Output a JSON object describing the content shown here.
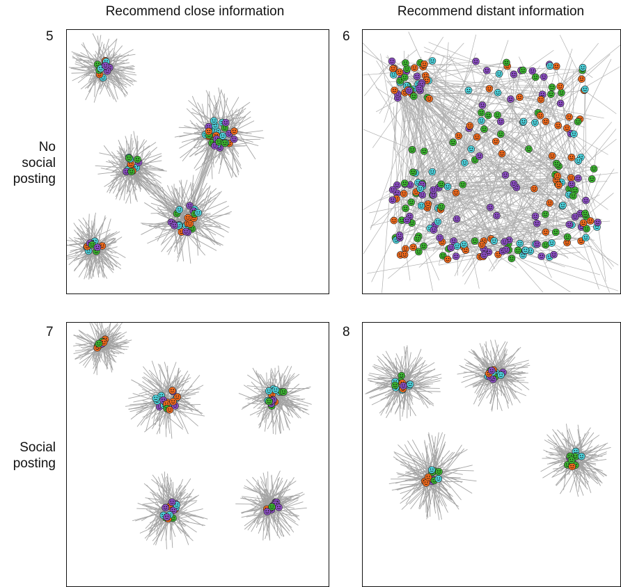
{
  "column_titles": [
    "Recommend close information",
    "Recommend distant information"
  ],
  "row_labels": [
    {
      "lines": [
        "No",
        "social",
        "posting"
      ]
    },
    {
      "lines": [
        "Social",
        "posting"
      ]
    }
  ],
  "panels": [
    {
      "number": "5",
      "layout": "clusters",
      "cluster_count": 5,
      "intercluster_links": true
    },
    {
      "number": "6",
      "layout": "dispersed",
      "cluster_count": 0,
      "intercluster_links": true
    },
    {
      "number": "7",
      "layout": "clusters",
      "cluster_count": 5,
      "intercluster_links": false
    },
    {
      "number": "8",
      "layout": "clusters",
      "cluster_count": 4,
      "intercluster_links": false
    }
  ],
  "colors": {
    "edge": "#9a9a9a",
    "node_orange": "#f26b1d",
    "node_green": "#3cb531",
    "node_cyan": "#4fd3dd",
    "node_purple": "#8d4fc4",
    "border": "#111111"
  },
  "icons": {
    "node": "smiley-face-icon"
  }
}
